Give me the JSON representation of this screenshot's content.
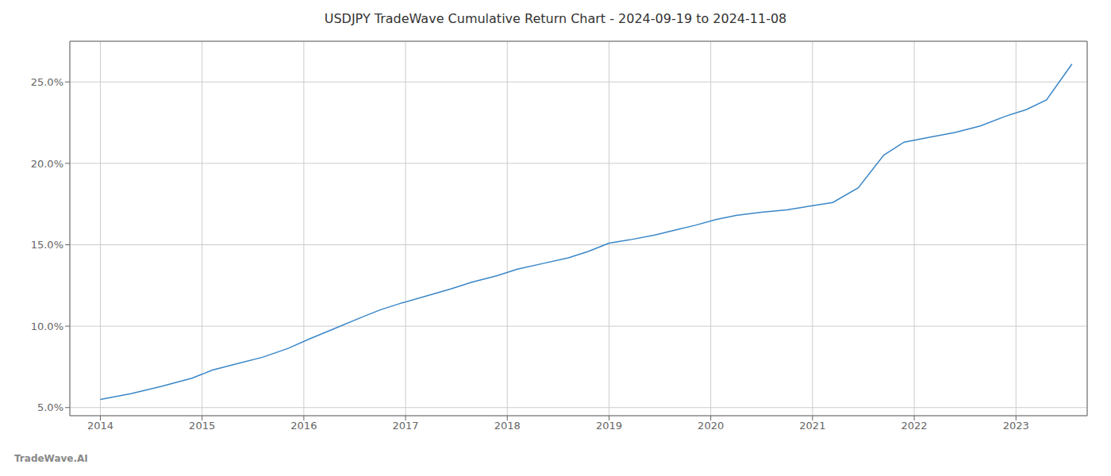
{
  "chart_data": {
    "type": "line",
    "title": "USDJPY TradeWave Cumulative Return Chart - 2024-09-19 to 2024-11-08",
    "annotations": [
      "TradeWave.AI"
    ],
    "x": [
      2014.0,
      2014.3,
      2014.6,
      2014.9,
      2015.1,
      2015.35,
      2015.6,
      2015.85,
      2016.05,
      2016.3,
      2016.55,
      2016.75,
      2016.95,
      2017.2,
      2017.45,
      2017.65,
      2017.9,
      2018.1,
      2018.35,
      2018.6,
      2018.8,
      2019.0,
      2019.2,
      2019.45,
      2019.65,
      2019.85,
      2020.05,
      2020.25,
      2020.5,
      2020.75,
      2021.0,
      2021.2,
      2021.45,
      2021.7,
      2021.9,
      2022.15,
      2022.4,
      2022.65,
      2022.9,
      2023.1,
      2023.3,
      2023.55
    ],
    "values": [
      5.5,
      5.85,
      6.3,
      6.8,
      7.3,
      7.7,
      8.1,
      8.65,
      9.2,
      9.85,
      10.5,
      11.0,
      11.4,
      11.85,
      12.3,
      12.7,
      13.1,
      13.5,
      13.85,
      14.2,
      14.6,
      15.1,
      15.3,
      15.6,
      15.9,
      16.2,
      16.55,
      16.8,
      17.0,
      17.15,
      17.4,
      17.6,
      18.5,
      20.5,
      21.3,
      21.6,
      21.9,
      22.3,
      22.9,
      23.3,
      23.9,
      26.1
    ],
    "color": "#3a87c8",
    "xlim": [
      2013.7,
      2023.7
    ],
    "ylim": [
      4.5,
      27.5
    ],
    "xticks": [
      2014,
      2015,
      2016,
      2017,
      2018,
      2019,
      2020,
      2021,
      2022,
      2023
    ],
    "yticks": [
      {
        "value": 5.0,
        "label": "5.0%"
      },
      {
        "value": 10.0,
        "label": "10.0%"
      },
      {
        "value": 15.0,
        "label": "15.0%"
      },
      {
        "value": 20.0,
        "label": "20.0%"
      },
      {
        "value": 25.0,
        "label": "25.0%"
      }
    ],
    "grid": true
  }
}
